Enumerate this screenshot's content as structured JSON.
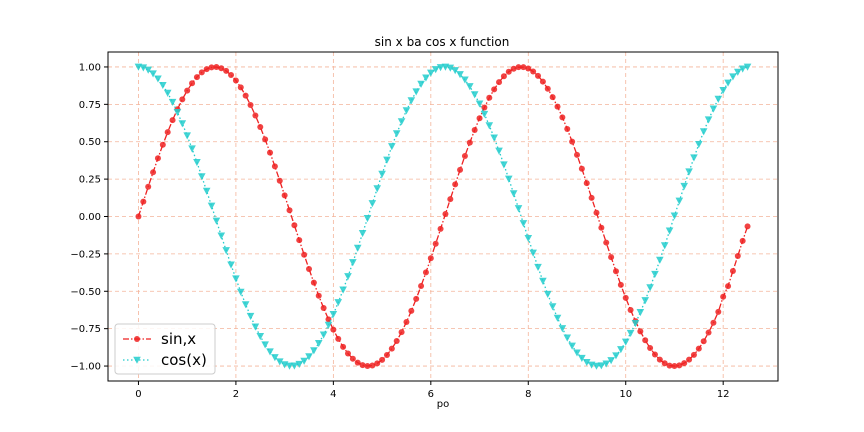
{
  "chart_data": {
    "type": "line",
    "title": "sin x ba cos x function",
    "xlabel": "po",
    "ylabel": "",
    "xlim": [
      -0.625,
      13.125
    ],
    "ylim": [
      -1.1,
      1.1
    ],
    "x_ticks": [
      0,
      2,
      4,
      6,
      8,
      10,
      12
    ],
    "x_tick_labels": [
      "0",
      "2",
      "4",
      "6",
      "8",
      "10",
      "12"
    ],
    "y_ticks": [
      -1.0,
      -0.75,
      -0.5,
      -0.25,
      0.0,
      0.25,
      0.5,
      0.75,
      1.0
    ],
    "y_tick_labels": [
      "−1.00",
      "−0.75",
      "−0.50",
      "−0.25",
      "0.00",
      "0.25",
      "0.50",
      "0.75",
      "1.00"
    ],
    "grid": true,
    "grid_color": "#f4b49a",
    "legend_position": "lower-left",
    "x": [
      0,
      0.1,
      0.2,
      0.3,
      0.4,
      0.5,
      0.6,
      0.7,
      0.8,
      0.9,
      1.0,
      1.1,
      1.2,
      1.3,
      1.4,
      1.5,
      1.6,
      1.7,
      1.8,
      1.9,
      2.0,
      2.1,
      2.2,
      2.3,
      2.4,
      2.5,
      2.6,
      2.7,
      2.8,
      2.9,
      3.0,
      3.1,
      3.2,
      3.3,
      3.4,
      3.5,
      3.6,
      3.7,
      3.8,
      3.9,
      4.0,
      4.1,
      4.2,
      4.3,
      4.4,
      4.5,
      4.6,
      4.7,
      4.8,
      4.9,
      5.0,
      5.1,
      5.2,
      5.3,
      5.4,
      5.5,
      5.6,
      5.7,
      5.8,
      5.9,
      6.0,
      6.1,
      6.2,
      6.3,
      6.4,
      6.5,
      6.6,
      6.7,
      6.8,
      6.9,
      7.0,
      7.1,
      7.2,
      7.3,
      7.4,
      7.5,
      7.6,
      7.7,
      7.8,
      7.9,
      8.0,
      8.1,
      8.2,
      8.3,
      8.4,
      8.5,
      8.6,
      8.7,
      8.8,
      8.9,
      9.0,
      9.1,
      9.2,
      9.3,
      9.4,
      9.5,
      9.6,
      9.7,
      9.8,
      9.9,
      10.0,
      10.1,
      10.2,
      10.3,
      10.4,
      10.5,
      10.6,
      10.7,
      10.8,
      10.9,
      11.0,
      11.1,
      11.2,
      11.3,
      11.4,
      11.5,
      11.6,
      11.7,
      11.8,
      11.9,
      12.0,
      12.1,
      12.2,
      12.3,
      12.4,
      12.5
    ],
    "series": [
      {
        "name": "sin,x",
        "color": "#ee2222",
        "line_style": "dash-dot",
        "marker": "circle",
        "values": [
          0.0,
          0.0998,
          0.1987,
          0.2955,
          0.3894,
          0.4794,
          0.5646,
          0.6442,
          0.7174,
          0.7833,
          0.8415,
          0.8912,
          0.932,
          0.9636,
          0.9854,
          0.9975,
          0.9996,
          0.9917,
          0.9738,
          0.9463,
          0.9093,
          0.8632,
          0.8085,
          0.7457,
          0.6755,
          0.5985,
          0.5155,
          0.4274,
          0.335,
          0.2392,
          0.1411,
          0.0416,
          -0.0584,
          -0.1577,
          -0.2555,
          -0.3508,
          -0.4425,
          -0.5298,
          -0.6119,
          -0.6878,
          -0.7568,
          -0.8183,
          -0.8716,
          -0.9162,
          -0.9516,
          -0.9775,
          -0.9937,
          -0.9999,
          -0.9962,
          -0.9825,
          -0.9589,
          -0.9258,
          -0.8835,
          -0.8323,
          -0.7728,
          -0.7055,
          -0.6313,
          -0.5507,
          -0.4646,
          -0.3739,
          -0.2794,
          -0.1822,
          -0.0831,
          0.0168,
          0.1165,
          0.2151,
          0.3115,
          0.4048,
          0.4941,
          0.5784,
          0.657,
          0.729,
          0.7937,
          0.8504,
          0.8987,
          0.938,
          0.9679,
          0.9882,
          0.9985,
          0.9989,
          0.9894,
          0.9699,
          0.9407,
          0.9022,
          0.8546,
          0.7985,
          0.7344,
          0.663,
          0.585,
          0.501,
          0.4121,
          0.319,
          0.2229,
          0.1245,
          0.0248,
          -0.0752,
          -0.1743,
          -0.2718,
          -0.3665,
          -0.4575,
          -0.544,
          -0.625,
          -0.6999,
          -0.7679,
          -0.8278,
          -0.8797,
          -0.9228,
          -0.957,
          -0.9817,
          -0.9969,
          -1.0,
          -0.9954,
          -0.9803,
          -0.9573,
          -0.925,
          -0.8839,
          -0.8341,
          -0.7761,
          -0.7104,
          -0.6374,
          -0.5366,
          -0.4654,
          -0.3646,
          -0.2638,
          -0.163,
          -0.066
        ]
      },
      {
        "name": "cos(x)",
        "color": "#22cccc",
        "line_style": "dotted",
        "marker": "triangle-down",
        "values": [
          1.0,
          0.995,
          0.9801,
          0.9553,
          0.9211,
          0.8776,
          0.8253,
          0.7648,
          0.6967,
          0.6216,
          0.5403,
          0.4536,
          0.3624,
          0.2675,
          0.17,
          0.0707,
          -0.0292,
          -0.1288,
          -0.2272,
          -0.3233,
          -0.4161,
          -0.5048,
          -0.5885,
          -0.6663,
          -0.7374,
          -0.8011,
          -0.8569,
          -0.9041,
          -0.9422,
          -0.971,
          -0.99,
          -0.9991,
          -0.9983,
          -0.9875,
          -0.9668,
          -0.9365,
          -0.8968,
          -0.8481,
          -0.791,
          -0.7259,
          -0.6536,
          -0.5748,
          -0.4903,
          -0.4008,
          -0.3073,
          -0.2108,
          -0.1122,
          -0.0124,
          0.0875,
          0.1865,
          0.2837,
          0.378,
          0.4685,
          0.5544,
          0.6347,
          0.7087,
          0.7756,
          0.8347,
          0.8855,
          0.9275,
          0.9602,
          0.9833,
          0.9965,
          0.9999,
          0.9932,
          0.9766,
          0.9502,
          0.9144,
          0.8694,
          0.8157,
          0.7539,
          0.6845,
          0.6084,
          0.5261,
          0.4385,
          0.3466,
          0.2513,
          0.1534,
          0.054,
          -0.046,
          -0.1455,
          -0.2435,
          -0.3392,
          -0.4314,
          -0.5193,
          -0.602,
          -0.6787,
          -0.7486,
          -0.8111,
          -0.8654,
          -0.9111,
          -0.9477,
          -0.9748,
          -0.9922,
          -0.9997,
          -0.9972,
          -0.9847,
          -0.9624,
          -0.9304,
          -0.8892,
          -0.8391,
          -0.7806,
          -0.7143,
          -0.6408,
          -0.561,
          -0.4755,
          -0.3853,
          -0.2913,
          -0.1943,
          -0.0954,
          0.0044,
          0.1042,
          0.203,
          0.2996,
          0.393,
          0.483,
          0.5677,
          0.6471,
          0.7199,
          0.7856,
          0.8439,
          0.8935,
          0.9346,
          0.9661,
          0.9875,
          0.9998
        ]
      }
    ]
  }
}
